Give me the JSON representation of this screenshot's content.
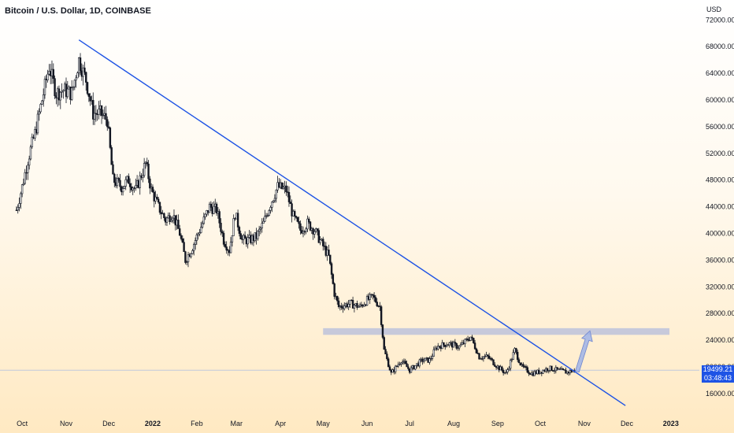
{
  "symbol": {
    "title": "Bitcoin / U.S. Dollar, 1D, COINBASE"
  },
  "price_axis": {
    "currency": "USD",
    "ticks": [
      "72000.00",
      "68000.00",
      "64000.00",
      "60000.00",
      "56000.00",
      "52000.00",
      "48000.00",
      "44000.00",
      "40000.00",
      "36000.00",
      "32000.00",
      "28000.00",
      "24000.00",
      "20000.00",
      "16000.00"
    ]
  },
  "last_price": {
    "value": "19499.21",
    "countdown": "03:48:43"
  },
  "colors": {
    "trendline": "#1e53e5",
    "candle": "#131722",
    "zone": "#b4bcdc",
    "arrow": "#9fb3e8",
    "price_line": "#c0c8dc"
  },
  "chart_data": {
    "type": "candlestick",
    "title": "Bitcoin / U.S. Dollar, 1D, COINBASE",
    "ylabel": "USD",
    "ylim": [
      14500,
      75000
    ],
    "x_ticks": [
      "Oct",
      "Nov",
      "Dec",
      "2022",
      "Feb",
      "Mar",
      "Apr",
      "May",
      "Jun",
      "Jul",
      "Aug",
      "Sep",
      "Oct",
      "Nov",
      "Dec",
      "2023"
    ],
    "x_tick_dates": [
      "2021-10-01",
      "2021-11-01",
      "2021-12-01",
      "2022-01-01",
      "2022-02-01",
      "2022-03-01",
      "2022-04-01",
      "2022-05-01",
      "2022-06-01",
      "2022-07-01",
      "2022-08-01",
      "2022-09-01",
      "2022-10-01",
      "2022-11-01",
      "2022-12-01",
      "2023-01-01"
    ],
    "close_path": [
      [
        "2021-09-27",
        43500
      ],
      [
        "2021-10-01",
        47000
      ],
      [
        "2021-10-05",
        51000
      ],
      [
        "2021-10-10",
        55000
      ],
      [
        "2021-10-15",
        60000
      ],
      [
        "2021-10-20",
        65000
      ],
      [
        "2021-10-25",
        61000
      ],
      [
        "2021-10-30",
        61500
      ],
      [
        "2021-11-05",
        61000
      ],
      [
        "2021-11-10",
        66000
      ],
      [
        "2021-11-15",
        63000
      ],
      [
        "2021-11-20",
        58000
      ],
      [
        "2021-11-25",
        58000
      ],
      [
        "2021-11-30",
        57000
      ],
      [
        "2021-12-04",
        48000
      ],
      [
        "2021-12-10",
        47000
      ],
      [
        "2021-12-15",
        48000
      ],
      [
        "2021-12-20",
        46500
      ],
      [
        "2021-12-27",
        50500
      ],
      [
        "2021-12-31",
        46500
      ],
      [
        "2022-01-05",
        44000
      ],
      [
        "2022-01-10",
        42000
      ],
      [
        "2022-01-15",
        43000
      ],
      [
        "2022-01-20",
        40000
      ],
      [
        "2022-01-24",
        36000
      ],
      [
        "2022-01-28",
        37500
      ],
      [
        "2022-02-05",
        41500
      ],
      [
        "2022-02-10",
        44000
      ],
      [
        "2022-02-15",
        43500
      ],
      [
        "2022-02-20",
        39000
      ],
      [
        "2022-02-24",
        37500
      ],
      [
        "2022-02-28",
        43000
      ],
      [
        "2022-03-05",
        39000
      ],
      [
        "2022-03-10",
        39000
      ],
      [
        "2022-03-15",
        39500
      ],
      [
        "2022-03-20",
        41500
      ],
      [
        "2022-03-25",
        44500
      ],
      [
        "2022-03-30",
        47000
      ],
      [
        "2022-04-05",
        46500
      ],
      [
        "2022-04-10",
        42500
      ],
      [
        "2022-04-15",
        40500
      ],
      [
        "2022-04-20",
        41500
      ],
      [
        "2022-04-25",
        40500
      ],
      [
        "2022-04-30",
        38500
      ],
      [
        "2022-05-05",
        36500
      ],
      [
        "2022-05-09",
        31000
      ],
      [
        "2022-05-12",
        29000
      ],
      [
        "2022-05-20",
        29500
      ],
      [
        "2022-05-27",
        29000
      ],
      [
        "2022-06-01",
        30000
      ],
      [
        "2022-06-05",
        30500
      ],
      [
        "2022-06-10",
        29000
      ],
      [
        "2022-06-13",
        22500
      ],
      [
        "2022-06-18",
        19000
      ],
      [
        "2022-06-25",
        21000
      ],
      [
        "2022-07-01",
        19500
      ],
      [
        "2022-07-10",
        21000
      ],
      [
        "2022-07-15",
        21000
      ],
      [
        "2022-07-20",
        23000
      ],
      [
        "2022-07-28",
        23500
      ],
      [
        "2022-08-05",
        23000
      ],
      [
        "2022-08-13",
        24500
      ],
      [
        "2022-08-19",
        21500
      ],
      [
        "2022-08-25",
        21500
      ],
      [
        "2022-09-01",
        20000
      ],
      [
        "2022-09-07",
        19000
      ],
      [
        "2022-09-13",
        22500
      ],
      [
        "2022-09-18",
        20000
      ],
      [
        "2022-09-25",
        19000
      ],
      [
        "2022-10-01",
        19300
      ],
      [
        "2022-10-07",
        19800
      ],
      [
        "2022-10-13",
        19500
      ],
      [
        "2022-10-20",
        19200
      ],
      [
        "2022-10-25",
        19499.21
      ]
    ],
    "trendline": {
      "start": [
        "2021-11-10",
        69000
      ],
      "end": [
        "2022-11-30",
        14200
      ]
    },
    "resistance_zone": {
      "from": "2022-05-01",
      "to": "2022-12-31",
      "price_low": 24800,
      "price_high": 25800
    },
    "projection_arrow": {
      "start": [
        "2022-10-27",
        19300
      ],
      "end": [
        "2022-11-05",
        25400
      ]
    },
    "current_price": 19499.21
  }
}
